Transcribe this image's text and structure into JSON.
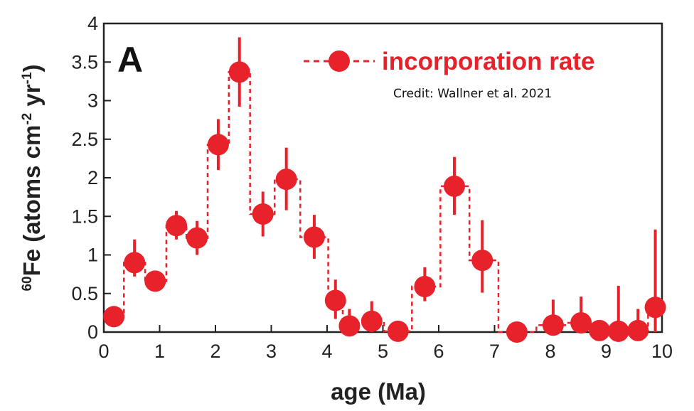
{
  "colors": {
    "series": "#e8222b",
    "axis": "#222222",
    "background": "#ffffff"
  },
  "chart_data": {
    "type": "scatter",
    "panel_label": "A",
    "credit": "Credit: Wallner et al. 2021",
    "xlabel": "age (Ma)",
    "ylabel": "60Fe (atoms cm-2 yr-1)",
    "ylabel_parts": {
      "sup1": "60",
      "t1": "Fe (atoms cm",
      "sup2": "-2",
      "t2": " yr",
      "sup3": "-1",
      "t3": ")"
    },
    "xlim": [
      0,
      10
    ],
    "ylim": [
      0,
      4
    ],
    "xticks": [
      "0",
      "1",
      "2",
      "3",
      "4",
      "5",
      "6",
      "7",
      "8",
      "9",
      "10"
    ],
    "yticks": [
      "0",
      "0.5",
      "1",
      "1.5",
      "2",
      "2.5",
      "3",
      "3.5",
      "4"
    ],
    "xtick_values": [
      0,
      1,
      2,
      3,
      4,
      5,
      6,
      7,
      8,
      9,
      10
    ],
    "ytick_values": [
      0,
      0.5,
      1,
      1.5,
      2,
      2.5,
      3,
      3.5,
      4
    ],
    "grid": false,
    "legend_position": "top-right",
    "series": [
      {
        "name": "incorporation rate",
        "style": "dashed step with error bars",
        "points": [
          {
            "x": 0.18,
            "y": 0.2,
            "lo": 0.2,
            "hi": 0.2,
            "x0": 0.0,
            "x1": 0.36
          },
          {
            "x": 0.55,
            "y": 0.9,
            "lo": 0.72,
            "hi": 1.2,
            "x0": 0.36,
            "x1": 0.74
          },
          {
            "x": 0.92,
            "y": 0.66,
            "lo": 0.56,
            "hi": 0.78,
            "x0": 0.74,
            "x1": 1.12
          },
          {
            "x": 1.3,
            "y": 1.38,
            "lo": 1.2,
            "hi": 1.57,
            "x0": 1.12,
            "x1": 1.48
          },
          {
            "x": 1.67,
            "y": 1.22,
            "lo": 1.0,
            "hi": 1.44,
            "x0": 1.48,
            "x1": 1.86
          },
          {
            "x": 2.05,
            "y": 2.43,
            "lo": 2.1,
            "hi": 2.76,
            "x0": 1.86,
            "x1": 2.24
          },
          {
            "x": 2.43,
            "y": 3.37,
            "lo": 2.92,
            "hi": 3.82,
            "x0": 2.24,
            "x1": 2.62
          },
          {
            "x": 2.85,
            "y": 1.53,
            "lo": 1.24,
            "hi": 1.82,
            "x0": 2.62,
            "x1": 3.06
          },
          {
            "x": 3.27,
            "y": 1.98,
            "lo": 1.58,
            "hi": 2.39,
            "x0": 3.06,
            "x1": 3.52
          },
          {
            "x": 3.77,
            "y": 1.23,
            "lo": 0.95,
            "hi": 1.52,
            "x0": 3.52,
            "x1": 4.02
          },
          {
            "x": 4.15,
            "y": 0.41,
            "lo": 0.17,
            "hi": 0.68,
            "x0": 4.02,
            "x1": 4.28
          },
          {
            "x": 4.4,
            "y": 0.08,
            "lo": 0.0,
            "hi": 0.3,
            "x0": 4.28,
            "x1": 4.57
          },
          {
            "x": 4.8,
            "y": 0.14,
            "lo": 0.0,
            "hi": 0.4,
            "x0": 4.57,
            "x1": 5.02
          },
          {
            "x": 5.27,
            "y": 0.01,
            "lo": 0.0,
            "hi": 0.1,
            "x0": 5.02,
            "x1": 5.52
          },
          {
            "x": 5.75,
            "y": 0.59,
            "lo": 0.4,
            "hi": 0.84,
            "x0": 5.52,
            "x1": 6.03
          },
          {
            "x": 6.28,
            "y": 1.89,
            "lo": 1.52,
            "hi": 2.27,
            "x0": 6.03,
            "x1": 6.55
          },
          {
            "x": 6.78,
            "y": 0.93,
            "lo": 0.51,
            "hi": 1.45,
            "x0": 6.55,
            "x1": 7.07
          },
          {
            "x": 7.4,
            "y": 0.0,
            "lo": 0.0,
            "hi": 0.05,
            "x0": 7.07,
            "x1": 7.75
          },
          {
            "x": 8.05,
            "y": 0.09,
            "lo": 0.0,
            "hi": 0.42,
            "x0": 7.75,
            "x1": 8.3
          },
          {
            "x": 8.55,
            "y": 0.12,
            "lo": 0.0,
            "hi": 0.46,
            "x0": 8.3,
            "x1": 8.72
          },
          {
            "x": 8.88,
            "y": 0.02,
            "lo": 0.0,
            "hi": 0.1,
            "x0": 8.72,
            "x1": 9.05
          },
          {
            "x": 9.22,
            "y": 0.01,
            "lo": 0.0,
            "hi": 0.6,
            "x0": 9.05,
            "x1": 9.4
          },
          {
            "x": 9.57,
            "y": 0.02,
            "lo": 0.0,
            "hi": 0.3,
            "x0": 9.4,
            "x1": 9.75
          },
          {
            "x": 9.88,
            "y": 0.32,
            "lo": 0.0,
            "hi": 1.33,
            "x0": 9.75,
            "x1": 10.0
          }
        ]
      }
    ]
  }
}
